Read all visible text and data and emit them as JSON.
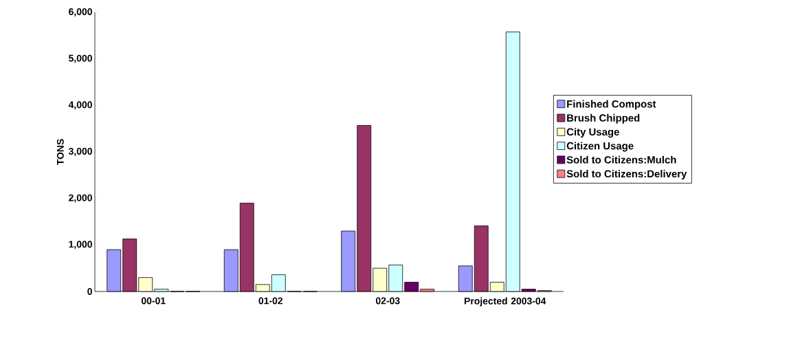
{
  "chart_data": {
    "type": "bar",
    "ylabel": "TONS",
    "categories": [
      "00-01",
      "01-02",
      "02-03",
      "Projected 2003-04"
    ],
    "series": [
      {
        "name": "Finished Compost",
        "color": "#9999ff",
        "values": [
          900,
          900,
          1300,
          550
        ]
      },
      {
        "name": "Brush Chipped",
        "color": "#993366",
        "values": [
          1130,
          1900,
          3570,
          1410
        ]
      },
      {
        "name": "City Usage",
        "color": "#ffffcc",
        "values": [
          300,
          150,
          500,
          200
        ]
      },
      {
        "name": "Citizen Usage",
        "color": "#ccffff",
        "values": [
          50,
          360,
          570,
          5580
        ]
      },
      {
        "name": "Sold to Citizens:Mulch",
        "color": "#660066",
        "values": [
          0,
          0,
          200,
          50
        ]
      },
      {
        "name": "Sold to Citizens:Delivery",
        "color": "#ff8080",
        "values": [
          0,
          0,
          50,
          20
        ]
      }
    ],
    "ylim": [
      0,
      6000
    ],
    "yticks": [
      0,
      {
        "value": 1000,
        "label": "1,000"
      },
      {
        "value": 2000,
        "label": "2,000"
      },
      {
        "value": 3000,
        "label": "3,000"
      },
      {
        "value": 4000,
        "label": "4,000"
      },
      {
        "value": 5000,
        "label": "5,000"
      },
      {
        "value": 6000,
        "label": "6,000"
      }
    ],
    "grid": false,
    "legend": "right"
  }
}
